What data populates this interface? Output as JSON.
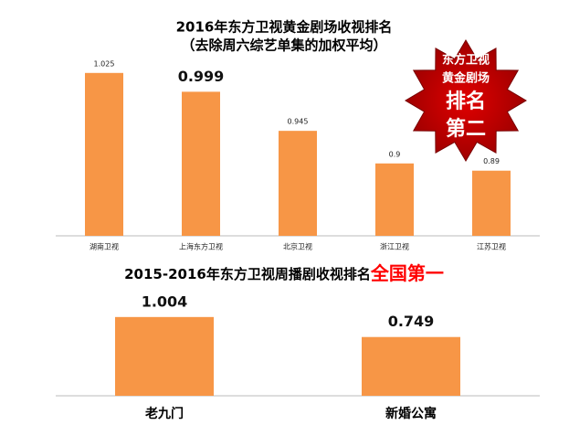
{
  "chart_data": [
    {
      "type": "bar",
      "title": "2016年东方卫视黄金剧场收视排名",
      "subtitle": "（去除周六综艺单集的加权平均）",
      "categories": [
        "湖南卫视",
        "上海东方卫视",
        "北京卫视",
        "浙江卫视",
        "江苏卫视"
      ],
      "values": [
        1.025,
        0.999,
        0.945,
        0.9,
        0.89
      ],
      "color": "#f79646",
      "ylim": [
        0.8,
        1.05
      ],
      "badge": [
        "东方卫视",
        "黄金剧场",
        "排名",
        "第二"
      ]
    },
    {
      "type": "bar",
      "title": "2015-2016年东方卫视周播剧收视排名",
      "title_highlight": "全国第一",
      "categories": [
        "老九门",
        "新婚公寓"
      ],
      "values": [
        1.004,
        0.749
      ],
      "color": "#f79646",
      "ylim": [
        0,
        1.2
      ]
    }
  ]
}
